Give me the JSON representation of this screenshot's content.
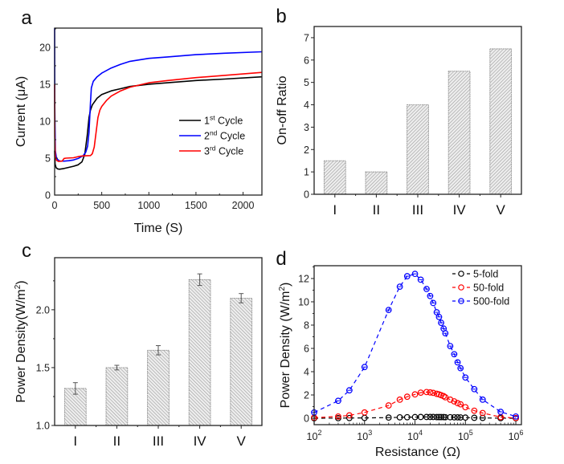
{
  "chart_data": [
    {
      "id": "a",
      "panel_label": "a",
      "type": "line",
      "xlabel": "Time (S)",
      "ylabel": "Current (μA)",
      "xlim": [
        0,
        2200
      ],
      "ylim": [
        0,
        22.6
      ],
      "xticks": [
        0,
        500,
        1000,
        1500,
        2000
      ],
      "yticks": [
        0,
        5,
        10,
        15,
        20
      ],
      "legend_position": "center-right",
      "series": [
        {
          "name": "1st Cycle",
          "label_base": "1",
          "label_sup": "st",
          "label_rest": " Cycle",
          "color": "#000000",
          "x": [
            0,
            5,
            15,
            30,
            50,
            100,
            150,
            200,
            250,
            290,
            320,
            345,
            365,
            380,
            400,
            450,
            500,
            600,
            700,
            800,
            1000,
            1200,
            1500,
            1800,
            2200
          ],
          "y": [
            6.0,
            4.2,
            3.7,
            3.55,
            3.5,
            3.6,
            3.75,
            3.9,
            4.1,
            4.5,
            5.5,
            8.0,
            10.5,
            11.5,
            12.2,
            13.1,
            13.6,
            14.1,
            14.4,
            14.7,
            15.0,
            15.2,
            15.5,
            15.7,
            16.0
          ]
        },
        {
          "name": "2nd Cycle",
          "label_base": "2",
          "label_sup": "nd",
          "label_rest": " Cycle",
          "color": "#0000ff",
          "x": [
            0,
            2,
            8,
            20,
            40,
            60,
            100,
            150,
            200,
            250,
            300,
            330,
            350,
            365,
            380,
            390,
            410,
            450,
            500,
            600,
            700,
            800,
            1000,
            1200,
            1500,
            1800,
            2200
          ],
          "y": [
            22.6,
            12.0,
            6.0,
            5.0,
            4.7,
            4.6,
            4.6,
            4.65,
            4.75,
            4.95,
            5.3,
            5.8,
            6.6,
            8.5,
            12.5,
            14.5,
            15.4,
            16.0,
            16.5,
            17.2,
            17.7,
            18.1,
            18.5,
            18.7,
            19.0,
            19.2,
            19.4
          ]
        },
        {
          "name": "3rd Cycle",
          "label_base": "3",
          "label_sup": "rd",
          "label_rest": " Cycle",
          "color": "#ff0000",
          "x": [
            0,
            2,
            8,
            20,
            40,
            80,
            100,
            120,
            200,
            250,
            300,
            380,
            400,
            420,
            440,
            460,
            480,
            500,
            550,
            600,
            700,
            800,
            1000,
            1200,
            1500,
            1800,
            2200
          ],
          "y": [
            15.0,
            8.0,
            5.2,
            4.7,
            4.55,
            4.6,
            4.95,
            5.0,
            5.05,
            5.2,
            5.3,
            5.35,
            5.6,
            6.5,
            8.5,
            10.5,
            11.5,
            12.0,
            12.8,
            13.4,
            14.1,
            14.6,
            15.2,
            15.5,
            15.9,
            16.2,
            16.6
          ]
        }
      ]
    },
    {
      "id": "b",
      "panel_label": "b",
      "type": "bar",
      "xlabel": "",
      "ylabel": "On-off Ratio",
      "categories": [
        "I",
        "II",
        "III",
        "IV",
        "V"
      ],
      "values": [
        1.5,
        1.0,
        4.0,
        5.5,
        6.5
      ],
      "ylim": [
        0,
        7.5
      ],
      "yticks": [
        0,
        1,
        2,
        3,
        4,
        5,
        6,
        7
      ],
      "bar_fill": "hatched-gray",
      "grid": false
    },
    {
      "id": "c",
      "panel_label": "c",
      "type": "bar",
      "xlabel": "",
      "ylabel_base": "Power Density(W/m",
      "ylabel_sup": "2",
      "ylabel_end": ")",
      "ylabel": "Power Density(W/m2)",
      "categories": [
        "I",
        "II",
        "III",
        "IV",
        "V"
      ],
      "values": [
        1.32,
        1.5,
        1.65,
        2.26,
        2.1
      ],
      "errors": [
        0.05,
        0.02,
        0.04,
        0.05,
        0.04
      ],
      "ylim": [
        1.0,
        2.45
      ],
      "yticks": [
        1.0,
        1.5,
        2.0
      ],
      "ytick_labels": [
        "1.0",
        "1.5",
        "2.0"
      ],
      "bar_fill": "hatched-gray",
      "grid": false
    },
    {
      "id": "d",
      "panel_label": "d",
      "type": "scatter",
      "xlabel": "Resistance (Ω)",
      "ylabel_base": "Power Density (W/m",
      "ylabel_sup": "2",
      "ylabel_end": ")",
      "ylabel": "Power Density (W/m2)",
      "xscale": "log",
      "xlim": [
        100,
        1000000
      ],
      "ylim": [
        -0.55,
        13.1
      ],
      "xticks_exp": [
        2,
        3,
        4,
        5,
        6
      ],
      "yticks": [
        0,
        2,
        4,
        6,
        8,
        10,
        12
      ],
      "legend_position": "top-right",
      "series": [
        {
          "name": "5-fold",
          "color": "#000000",
          "marker": "open-circle",
          "x": [
            100,
            300,
            500,
            1000,
            3000,
            5000,
            7000,
            10000,
            13000,
            17000,
            20000,
            23000,
            27000,
            30000,
            33000,
            37000,
            40000,
            50000,
            60000,
            70000,
            80000,
            100000,
            150000,
            220000,
            500000,
            1000000
          ],
          "y": [
            0.0,
            0.01,
            0.02,
            0.03,
            0.06,
            0.08,
            0.09,
            0.1,
            0.11,
            0.11,
            0.11,
            0.11,
            0.1,
            0.1,
            0.1,
            0.1,
            0.09,
            0.09,
            0.08,
            0.08,
            0.07,
            0.06,
            0.04,
            0.03,
            0.01,
            0.0
          ]
        },
        {
          "name": "50-fold",
          "color": "#ff0000",
          "marker": "open-circle",
          "x": [
            100,
            300,
            500,
            1000,
            3000,
            5000,
            7000,
            10000,
            13000,
            17000,
            20000,
            23000,
            27000,
            30000,
            33000,
            37000,
            40000,
            50000,
            60000,
            70000,
            80000,
            100000,
            150000,
            220000,
            500000,
            1000000
          ],
          "y": [
            0.05,
            0.15,
            0.25,
            0.5,
            1.1,
            1.6,
            1.85,
            2.05,
            2.2,
            2.25,
            2.22,
            2.18,
            2.1,
            2.05,
            1.98,
            1.9,
            1.8,
            1.6,
            1.45,
            1.3,
            1.2,
            0.95,
            0.65,
            0.45,
            0.1,
            0.02
          ]
        },
        {
          "name": "500-fold",
          "color": "#0000ff",
          "marker": "crossed-circle",
          "x": [
            100,
            300,
            500,
            1000,
            3000,
            5000,
            7000,
            10000,
            13000,
            17000,
            20000,
            23000,
            27000,
            30000,
            33000,
            37000,
            40000,
            50000,
            60000,
            70000,
            80000,
            100000,
            150000,
            220000,
            500000,
            1000000
          ],
          "y": [
            0.5,
            1.5,
            2.4,
            4.4,
            9.3,
            11.3,
            12.2,
            12.4,
            11.9,
            11.1,
            10.5,
            9.9,
            9.1,
            8.7,
            8.2,
            7.7,
            7.3,
            6.2,
            5.5,
            4.8,
            4.3,
            3.5,
            2.5,
            1.6,
            0.55,
            0.15
          ]
        }
      ]
    }
  ]
}
